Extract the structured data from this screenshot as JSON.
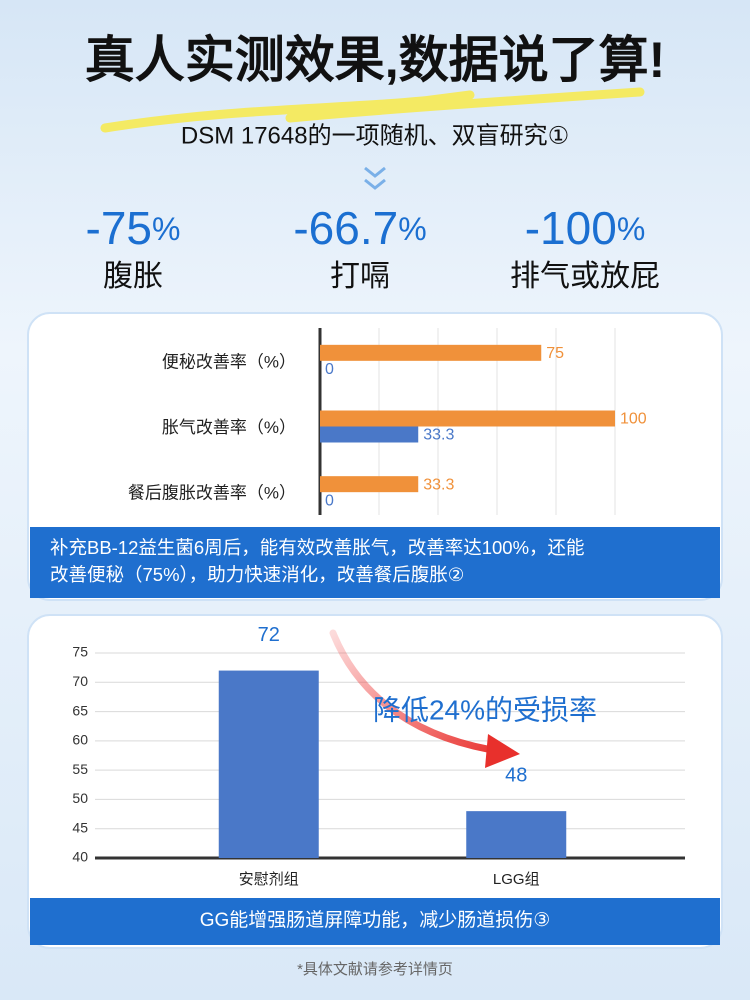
{
  "header": {
    "title": "真人实测效果,数据说了算!",
    "subtitle": "DSM 17648的一项随机、双盲研究①"
  },
  "stats": [
    {
      "value": -75,
      "unit": "%",
      "label": "腹胀"
    },
    {
      "value": -66.7,
      "unit": "%",
      "label": "打嗝"
    },
    {
      "value": -100,
      "unit": "%",
      "label": "排气或放屁"
    }
  ],
  "chart_data": [
    {
      "type": "barh",
      "categories": [
        "便秘改善率（%）",
        "胀气改善率（%）",
        "餐后腹胀改善率（%）"
      ],
      "series": [
        {
          "color": "#f0913a",
          "values": [
            75,
            100,
            33.3
          ]
        },
        {
          "color": "#4a78c8",
          "values": [
            0,
            33.3,
            0
          ]
        }
      ],
      "xlim": [
        0,
        100
      ],
      "xticks": [
        0,
        20,
        40,
        60,
        80,
        100
      ],
      "grid": true,
      "caption": "补充BB-12益生菌6周后，能有效改善胀气，改善率达100%，还能改善便秘（75%），助力快速消化，改善餐后腹胀②"
    },
    {
      "type": "bar",
      "categories": [
        "安慰剂组",
        "LGG组"
      ],
      "values": [
        72,
        48
      ],
      "color": "#4a78c8",
      "ylim": [
        40,
        75
      ],
      "yticks": [
        40,
        45,
        50,
        55,
        60,
        65,
        70,
        75
      ],
      "grid": true,
      "annotation": "降低24%的受损率",
      "caption": "GG能增强肠道屏障功能，减少肠道损伤③"
    }
  ],
  "footnote": "*具体文献请参考详情页"
}
